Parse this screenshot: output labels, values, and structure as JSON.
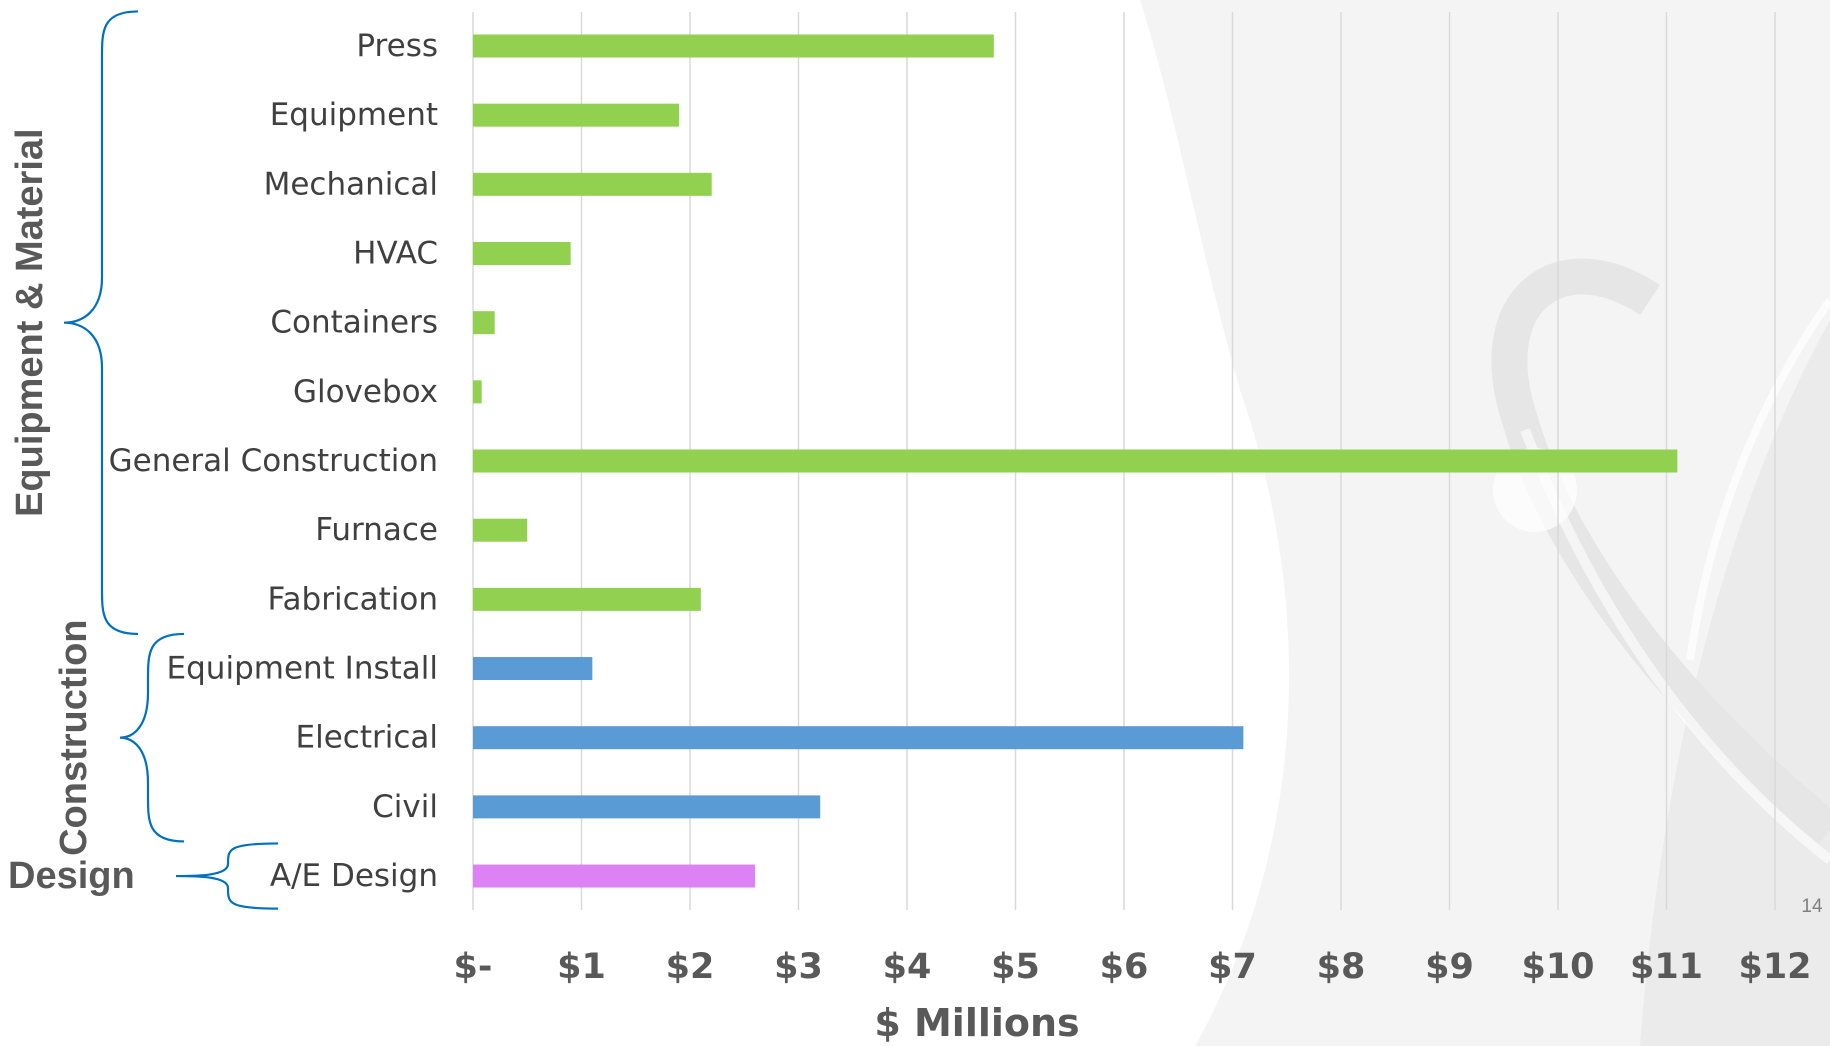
{
  "slide": {
    "page_number": "14"
  },
  "chart_data": {
    "type": "bar",
    "orientation": "horizontal",
    "title": "",
    "xlabel": "$ Millions",
    "ylabel": "",
    "xlim": [
      0,
      12
    ],
    "x_ticks": [
      0,
      1,
      2,
      3,
      4,
      5,
      6,
      7,
      8,
      9,
      10,
      11,
      12
    ],
    "x_tick_labels": [
      "$-",
      "$1",
      "$2",
      "$3",
      "$4",
      "$5",
      "$6",
      "$7",
      "$8",
      "$9",
      "$10",
      "$11",
      "$12"
    ],
    "grid": "vertical",
    "legend": "none",
    "categories": [
      "Press",
      "Equipment",
      "Mechanical",
      "HVAC",
      "Containers",
      "Glovebox",
      "General Construction",
      "Furnace",
      "Fabrication",
      "Equipment Install",
      "Electrical",
      "Civil",
      "A/E Design"
    ],
    "values": [
      4.8,
      1.9,
      2.2,
      0.9,
      0.2,
      0.08,
      11.1,
      0.5,
      2.1,
      1.1,
      7.1,
      3.2,
      2.6
    ],
    "groups": [
      {
        "label": "Equipment & Material",
        "color": "#92d050",
        "categories": [
          "Press",
          "Equipment",
          "Mechanical",
          "HVAC",
          "Containers",
          "Glovebox",
          "General Construction",
          "Furnace",
          "Fabrication"
        ]
      },
      {
        "label": "Construction",
        "color": "#5b9bd5",
        "categories": [
          "Equipment Install",
          "Electrical",
          "Civil"
        ]
      },
      {
        "label": "Design",
        "color": "#dd82f5",
        "categories": [
          "A/E Design"
        ]
      }
    ],
    "bracket_color": "#0070c0",
    "gridline_color": "#d9d9d9"
  }
}
